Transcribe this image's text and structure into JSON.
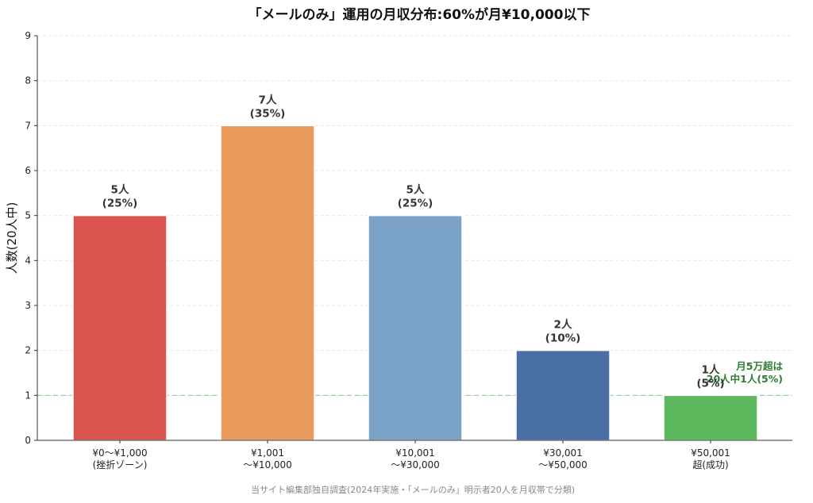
{
  "chart_data": {
    "type": "bar",
    "title": "「メールのみ」運用の月収分布:60%が月¥10,000以下",
    "ylabel": "人数(20人中)",
    "xlabel": "",
    "ylim": [
      0,
      9
    ],
    "yticks": [
      "0",
      "1",
      "2",
      "3",
      "4",
      "5",
      "6",
      "7",
      "8",
      "9"
    ],
    "grid": true,
    "categories": [
      [
        "¥0〜¥1,000",
        "(挫折ゾーン)"
      ],
      [
        "¥1,001",
        "〜¥10,000"
      ],
      [
        "¥10,001",
        "〜¥30,000"
      ],
      [
        "¥30,001",
        "〜¥50,000"
      ],
      [
        "¥50,001",
        "超(成功)"
      ]
    ],
    "values": [
      5,
      7,
      5,
      2,
      1
    ],
    "value_labels": [
      [
        "5人",
        "(25%)"
      ],
      [
        "7人",
        "(35%)"
      ],
      [
        "5人",
        "(25%)"
      ],
      [
        "2人",
        "(10%)"
      ],
      [
        "1人",
        "(5%)"
      ]
    ],
    "colors": [
      "#d9534f",
      "#e89b5d",
      "#7ba3c7",
      "#4a6fa5",
      "#5cb85c"
    ],
    "reference_line": {
      "y": 1,
      "color": "#8fd18f",
      "annotation": [
        "月5万超は",
        "20人中1人(5%)"
      ],
      "annotation_color": "#2e7d32"
    },
    "source": "当サイト編集部独自調査(2024年実施・「メールのみ」明示者20人を月収帯で分類)"
  }
}
